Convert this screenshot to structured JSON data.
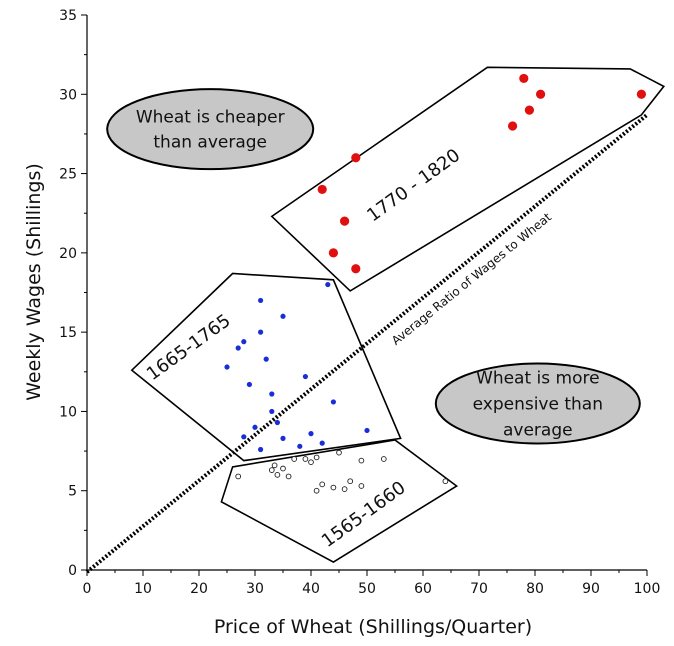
{
  "chart_data": {
    "type": "scatter",
    "title": "",
    "xlabel": "Price of  Wheat (Shillings/Quarter)",
    "ylabel": "Weekly Wages (Shillings)",
    "xlim": [
      0,
      100
    ],
    "ylim": [
      0,
      35
    ],
    "xticks": [
      0,
      10,
      20,
      30,
      40,
      50,
      60,
      70,
      80,
      90,
      100
    ],
    "yticks": [
      0,
      5,
      10,
      15,
      20,
      25,
      30,
      35
    ],
    "grid": false,
    "series": [
      {
        "name": "1770 - 1820",
        "color": "#e01010",
        "marker": "filled-circle-large",
        "points": [
          [
            42,
            24
          ],
          [
            48,
            26
          ],
          [
            46,
            22
          ],
          [
            44,
            20
          ],
          [
            48,
            19
          ],
          [
            78,
            31
          ],
          [
            81,
            30
          ],
          [
            79,
            29
          ],
          [
            76,
            28
          ],
          [
            99,
            30
          ]
        ]
      },
      {
        "name": "1665-1765",
        "color": "#1a2ed8",
        "marker": "filled-circle-small",
        "points": [
          [
            43,
            18
          ],
          [
            31,
            17
          ],
          [
            35,
            16
          ],
          [
            27,
            14
          ],
          [
            28,
            14.4
          ],
          [
            31,
            15
          ],
          [
            32,
            13.3
          ],
          [
            25,
            12.8
          ],
          [
            29,
            11.7
          ],
          [
            33,
            11.1
          ],
          [
            39,
            12.2
          ],
          [
            44,
            10.6
          ],
          [
            33,
            10
          ],
          [
            34,
            9.3
          ],
          [
            30,
            9
          ],
          [
            28,
            8.4
          ],
          [
            35,
            8.3
          ],
          [
            40,
            8.6
          ],
          [
            42,
            8
          ],
          [
            38,
            7.8
          ],
          [
            31,
            7.6
          ],
          [
            50,
            8.8
          ]
        ]
      },
      {
        "name": "1565-1660",
        "color": "#222222",
        "marker": "open-circle",
        "points": [
          [
            27,
            5.9
          ],
          [
            33,
            6.3
          ],
          [
            34,
            6
          ],
          [
            35,
            6.4
          ],
          [
            37,
            7
          ],
          [
            39,
            7
          ],
          [
            41,
            7.1
          ],
          [
            45,
            7.4
          ],
          [
            49,
            6.9
          ],
          [
            53,
            7
          ],
          [
            41,
            5
          ],
          [
            42,
            5.4
          ],
          [
            44,
            5.2
          ],
          [
            46,
            5.1
          ],
          [
            47,
            5.6
          ],
          [
            49,
            5.3
          ],
          [
            64,
            5.6
          ],
          [
            33.5,
            6.6
          ],
          [
            36,
            5.9
          ],
          [
            40,
            6.8
          ]
        ]
      }
    ],
    "reference_line": {
      "label": "Average Ratio of Wages to Wheat",
      "slope": 0.287,
      "style": "dotted"
    },
    "regions": [
      {
        "label": "1770 - 1820",
        "hull": [
          [
            33,
            22.3
          ],
          [
            71.5,
            31.7
          ],
          [
            97,
            31.6
          ],
          [
            103,
            30.5
          ],
          [
            99,
            28.7
          ],
          [
            47,
            17.6
          ]
        ]
      },
      {
        "label": "1665-1765",
        "hull": [
          [
            8,
            12.6
          ],
          [
            26,
            18.7
          ],
          [
            44,
            18.3
          ],
          [
            56,
            8.3
          ],
          [
            28,
            6.9
          ]
        ]
      },
      {
        "label": "1565-1660",
        "hull": [
          [
            26,
            6.5
          ],
          [
            55,
            8.2
          ],
          [
            66,
            5.3
          ],
          [
            44,
            0.5
          ],
          [
            24,
            4.3
          ]
        ]
      }
    ],
    "annotations": [
      {
        "id": "cheaper",
        "lines": [
          "Wheat is cheaper",
          "than average"
        ],
        "center": [
          22,
          27.8
        ]
      },
      {
        "id": "expensive",
        "lines": [
          "Wheat is  more",
          "expensive than",
          "average"
        ],
        "center": [
          80.5,
          10.5
        ]
      }
    ]
  }
}
